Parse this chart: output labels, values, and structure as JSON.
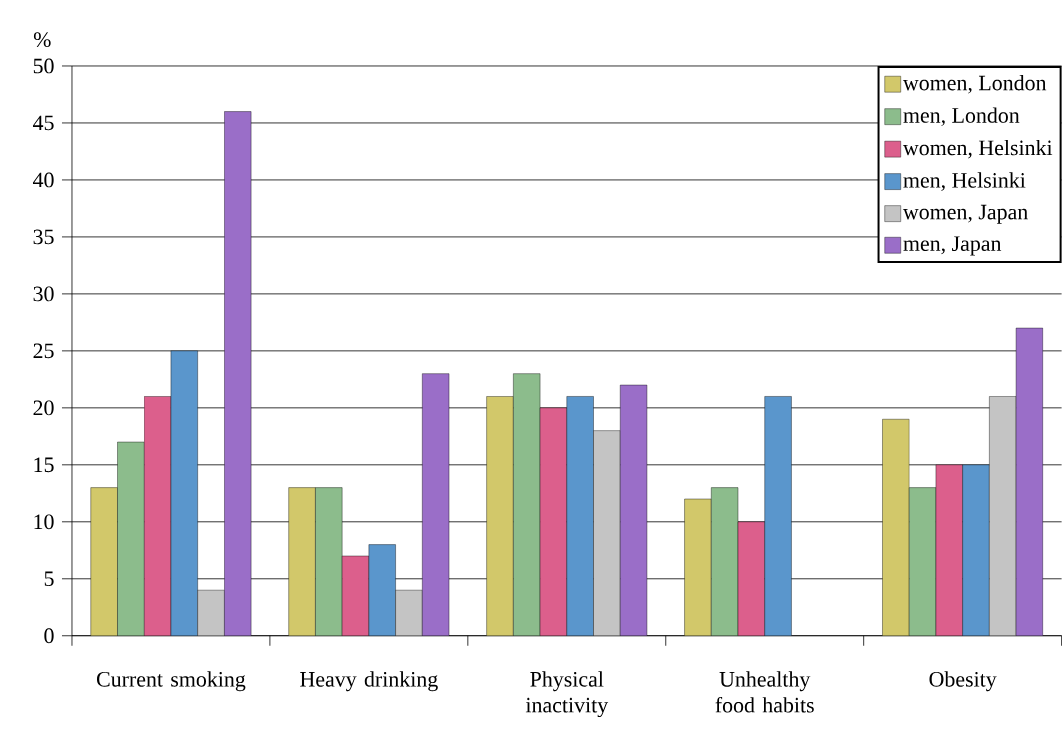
{
  "chart_data": {
    "type": "bar",
    "ylabel": "%",
    "categories": [
      "Current smoking",
      "Heavy drinking",
      "Physical inactivity",
      "Unhealthy food habits",
      "Obesity"
    ],
    "series": [
      {
        "name": "women, London",
        "color": "#d2c86a",
        "values": [
          13,
          13,
          21,
          12,
          19
        ]
      },
      {
        "name": "men, London",
        "color": "#8cbc8c",
        "values": [
          17,
          13,
          23,
          13,
          13
        ]
      },
      {
        "name": "women, Helsinki",
        "color": "#dc5f8c",
        "values": [
          21,
          7,
          20,
          10,
          15
        ]
      },
      {
        "name": "men, Helsinki",
        "color": "#5a96cc",
        "values": [
          25,
          8,
          21,
          21,
          15
        ]
      },
      {
        "name": "women, Japan",
        "color": "#c4c4c4",
        "values": [
          4,
          4,
          18,
          null,
          21
        ]
      },
      {
        "name": "men, Japan",
        "color": "#9a6ec8",
        "values": [
          46,
          23,
          22,
          null,
          27
        ]
      }
    ],
    "ylim": [
      0,
      50
    ],
    "yticks": [
      0,
      5,
      10,
      15,
      20,
      25,
      30,
      35,
      40,
      45,
      50
    ],
    "grid": "y",
    "legend": "top right"
  }
}
